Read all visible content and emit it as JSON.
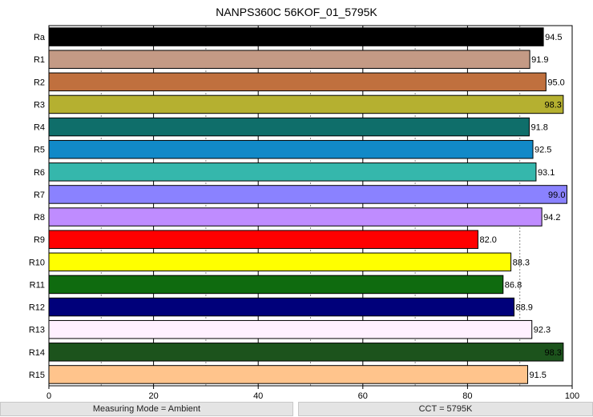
{
  "chart_data": {
    "type": "bar",
    "orientation": "horizontal",
    "title": "NANPS360C 56KOF_01_5795K",
    "categories": [
      "Ra",
      "R1",
      "R2",
      "R3",
      "R4",
      "R5",
      "R6",
      "R7",
      "R8",
      "R9",
      "R10",
      "R11",
      "R12",
      "R13",
      "R14",
      "R15"
    ],
    "values": [
      94.5,
      91.9,
      95.0,
      98.3,
      91.8,
      92.5,
      93.1,
      99.0,
      94.2,
      82.0,
      88.3,
      86.8,
      88.9,
      92.3,
      98.3,
      91.5
    ],
    "value_labels": [
      "94.5",
      "91.9",
      "95.0",
      "98.3",
      "91.8",
      "92.5",
      "93.1",
      "99.0",
      "94.2",
      "82.0",
      "88.3",
      "86.8",
      "88.9",
      "92.3",
      "98.3",
      "91.5"
    ],
    "colors": [
      "#000000",
      "#c49a85",
      "#c0703e",
      "#b5b030",
      "#0f6e6a",
      "#1189c8",
      "#35b7ac",
      "#8a82ff",
      "#bf8cff",
      "#ff0000",
      "#ffff00",
      "#0f6b0f",
      "#00007a",
      "#fff0ff",
      "#1c531c",
      "#ffc48c"
    ],
    "xlim": [
      0,
      100
    ],
    "xticks": [
      "0",
      "20",
      "40",
      "60",
      "80",
      "100"
    ],
    "grid": true
  },
  "footer": {
    "measuring_mode": "Measuring Mode = Ambient",
    "cct": "CCT = 5795K"
  }
}
